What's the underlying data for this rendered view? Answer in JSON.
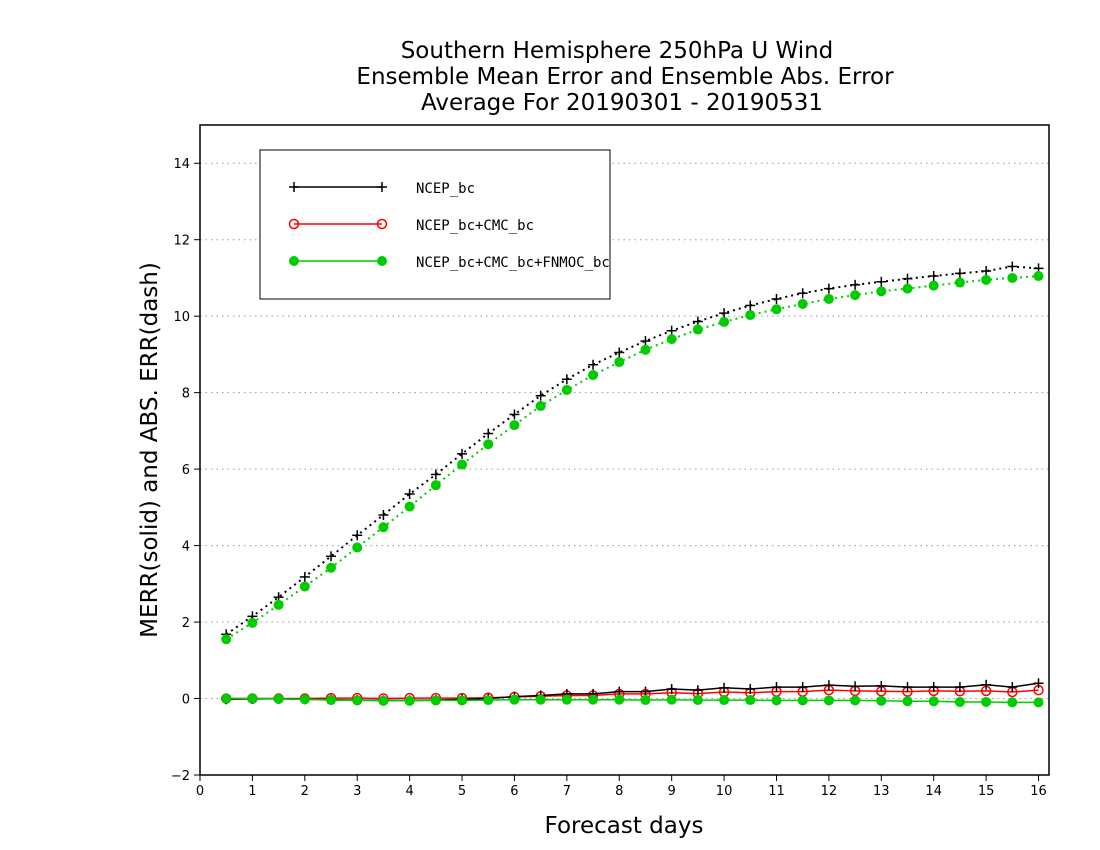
{
  "chart_data": {
    "type": "line",
    "title_lines": [
      "Southern Hemisphere 250hPa U Wind",
      "Ensemble Mean Error and Ensemble Abs. Error",
      "Average For 20190301 - 20190531"
    ],
    "xlabel": "Forecast days",
    "ylabel": "MERR(solid) and ABS. ERR(dash)",
    "xlim": [
      0,
      16.2
    ],
    "ylim": [
      -2,
      15
    ],
    "x_ticks": [
      0,
      1,
      2,
      3,
      4,
      5,
      6,
      7,
      8,
      9,
      10,
      11,
      12,
      13,
      14,
      15,
      16
    ],
    "y_ticks": [
      -2,
      0,
      2,
      4,
      6,
      8,
      10,
      12,
      14
    ],
    "grid": "horizontal dotted",
    "legend_position": "top-left",
    "x": [
      0.5,
      1.0,
      1.5,
      2.0,
      2.5,
      3.0,
      3.5,
      4.0,
      4.5,
      5.0,
      5.5,
      6.0,
      6.5,
      7.0,
      7.5,
      8.0,
      8.5,
      9.0,
      9.5,
      10.0,
      10.5,
      11.0,
      11.5,
      12.0,
      12.5,
      13.0,
      13.5,
      14.0,
      14.5,
      15.0,
      15.5,
      16.0
    ],
    "series": [
      {
        "name": "NCEP_bc",
        "color": "#000000",
        "marker": "plus",
        "merr": [
          -0.02,
          -0.01,
          -0.01,
          -0.02,
          -0.03,
          -0.04,
          -0.05,
          -0.05,
          -0.04,
          -0.02,
          0.0,
          0.05,
          0.08,
          0.12,
          0.12,
          0.18,
          0.18,
          0.25,
          0.22,
          0.28,
          0.25,
          0.3,
          0.3,
          0.35,
          0.32,
          0.33,
          0.3,
          0.3,
          0.3,
          0.36,
          0.3,
          0.4
        ],
        "abs_err": [
          1.68,
          2.15,
          2.65,
          3.18,
          3.72,
          4.27,
          4.8,
          5.35,
          5.86,
          6.4,
          6.93,
          7.43,
          7.92,
          8.35,
          8.73,
          9.05,
          9.35,
          9.62,
          9.86,
          10.08,
          10.28,
          10.45,
          10.6,
          10.72,
          10.82,
          10.9,
          10.98,
          11.05,
          11.12,
          11.18,
          11.3,
          11.25
        ]
      },
      {
        "name": "NCEP_bc+CMC_bc",
        "color": "#ff0000",
        "marker": "open-circle",
        "merr": [
          0.0,
          0.0,
          0.0,
          0.0,
          0.01,
          0.01,
          0.0,
          0.01,
          0.01,
          0.01,
          0.02,
          0.04,
          0.06,
          0.08,
          0.08,
          0.12,
          0.12,
          0.15,
          0.13,
          0.17,
          0.15,
          0.18,
          0.18,
          0.22,
          0.2,
          0.19,
          0.18,
          0.2,
          0.19,
          0.2,
          0.17,
          0.22
        ]
      },
      {
        "name": "NCEP_bc+CMC_bc+FNMOC_bc",
        "color": "#00cc00",
        "marker": "filled-circle",
        "merr": [
          0.0,
          0.0,
          -0.01,
          -0.02,
          -0.04,
          -0.05,
          -0.06,
          -0.06,
          -0.05,
          -0.05,
          -0.04,
          -0.03,
          -0.03,
          -0.03,
          -0.03,
          -0.03,
          -0.04,
          -0.03,
          -0.04,
          -0.04,
          -0.04,
          -0.05,
          -0.05,
          -0.05,
          -0.05,
          -0.06,
          -0.07,
          -0.07,
          -0.09,
          -0.09,
          -0.1,
          -0.1
        ],
        "abs_err": [
          1.55,
          1.98,
          2.45,
          2.93,
          3.42,
          3.95,
          4.48,
          5.02,
          5.58,
          6.12,
          6.65,
          7.15,
          7.65,
          8.07,
          8.46,
          8.8,
          9.12,
          9.4,
          9.65,
          9.85,
          10.03,
          10.18,
          10.32,
          10.45,
          10.55,
          10.65,
          10.72,
          10.8,
          10.88,
          10.95,
          11.0,
          11.05
        ]
      }
    ]
  }
}
